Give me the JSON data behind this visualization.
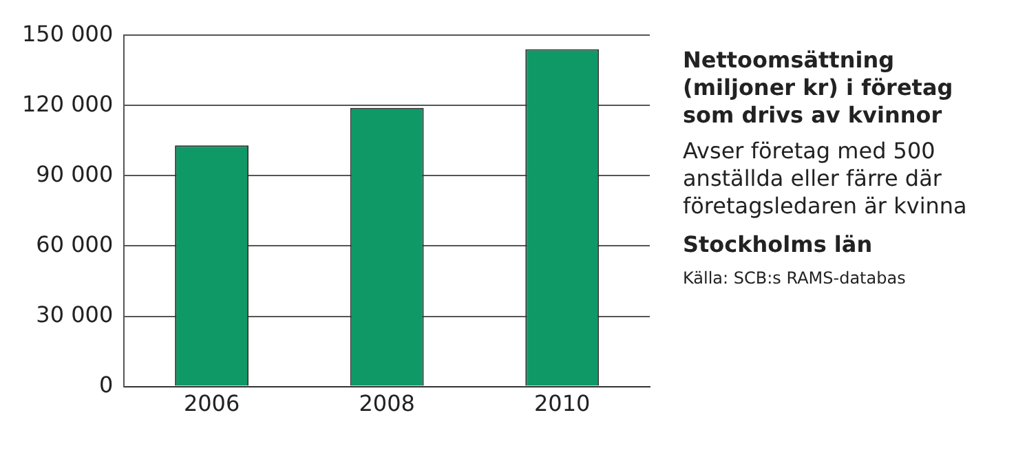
{
  "chart_data": {
    "type": "bar",
    "title": "Nettoomsättning (miljoner kr) i företag som drivs av kvinnor",
    "subtitle": "Avser företag med 500 anställda eller färre där företagsledaren är kvinna",
    "annotations": [
      "Stockholms län",
      "Källa: SCB:s RAMS-databas"
    ],
    "categories": [
      "2006",
      "2008",
      "2010"
    ],
    "values": [
      103000,
      119000,
      144000
    ],
    "color": "#0f9966",
    "ylim": [
      0,
      150000
    ],
    "yticks": [
      {
        "value": 0,
        "label": "0"
      },
      {
        "value": 30000,
        "label": "30 000"
      },
      {
        "value": 60000,
        "label": "60 000"
      },
      {
        "value": 90000,
        "label": "90 000"
      },
      {
        "value": 120000,
        "label": "120 000"
      },
      {
        "value": 150000,
        "label": "150 000"
      }
    ],
    "grid": "y",
    "legend": false
  }
}
